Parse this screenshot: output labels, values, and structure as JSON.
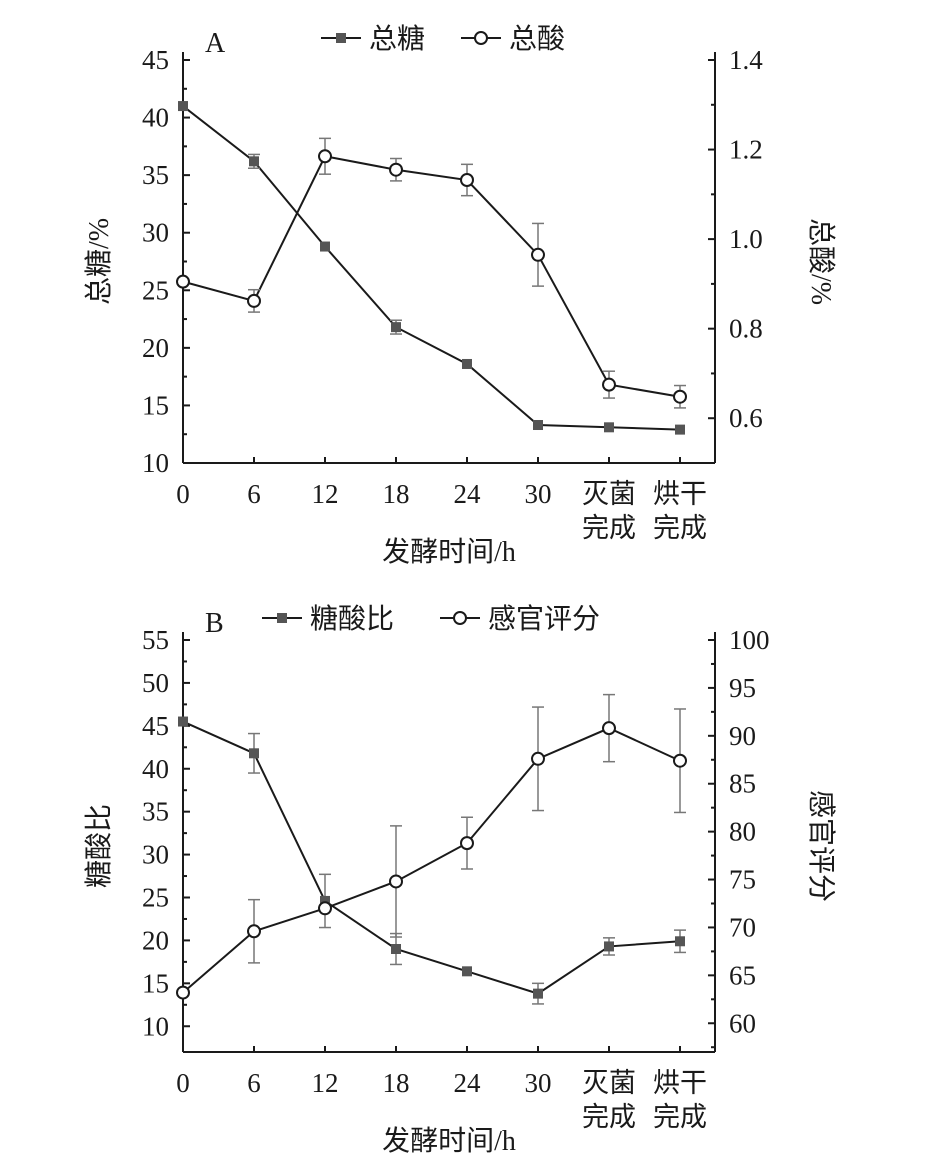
{
  "chart_data": [
    {
      "type": "line",
      "panel_label": "A",
      "categories": [
        "0",
        "6",
        "12",
        "18",
        "24",
        "30",
        "灭菌\n完成",
        "烘干\n完成"
      ],
      "xlabel": "发酵时间/h",
      "ylabel_left": "总糖/%",
      "ylabel_right": "总酸/%",
      "ylim_left": [
        10,
        45
      ],
      "yticks_left": [
        10,
        15,
        20,
        25,
        30,
        35,
        40,
        45
      ],
      "ylim_right": [
        0.5,
        1.4
      ],
      "yticks_right": [
        "0.6",
        "0.8",
        "1.0",
        "1.2",
        "1.4"
      ],
      "legend_position": "top-center",
      "series": [
        {
          "name": "总糖",
          "axis": "left",
          "marker": "square",
          "values": [
            41.0,
            36.2,
            28.8,
            21.8,
            18.6,
            13.3,
            13.1,
            12.9
          ],
          "errors": [
            0.0,
            0.6,
            0.0,
            0.6,
            0.0,
            0.0,
            0.0,
            0.0
          ]
        },
        {
          "name": "总酸",
          "axis": "right",
          "marker": "circle",
          "values": [
            0.905,
            0.862,
            1.185,
            1.155,
            1.132,
            0.965,
            0.675,
            0.648
          ],
          "errors": [
            0.0,
            0.025,
            0.04,
            0.025,
            0.035,
            0.07,
            0.03,
            0.025
          ]
        }
      ]
    },
    {
      "type": "line",
      "panel_label": "B",
      "categories": [
        "0",
        "6",
        "12",
        "18",
        "24",
        "30",
        "灭菌\n完成",
        "烘干\n完成"
      ],
      "xlabel": "发酵时间/h",
      "ylabel_left": "糖酸比",
      "ylabel_right": "感官评分",
      "ylim_left": [
        7,
        55
      ],
      "yticks_left": [
        10,
        15,
        20,
        25,
        30,
        35,
        40,
        45,
        50,
        55
      ],
      "ylim_right": [
        57,
        100
      ],
      "yticks_right": [
        60,
        65,
        70,
        75,
        80,
        85,
        90,
        95,
        100
      ],
      "legend_position": "top-center",
      "series": [
        {
          "name": "糖酸比",
          "axis": "left",
          "marker": "square",
          "values": [
            45.5,
            41.8,
            24.6,
            19.0,
            16.4,
            13.8,
            19.3,
            19.9
          ],
          "errors": [
            0.0,
            2.3,
            3.1,
            1.8,
            0.0,
            1.2,
            1.0,
            1.3
          ]
        },
        {
          "name": "感官评分",
          "axis": "right",
          "marker": "circle",
          "values": [
            63.2,
            69.6,
            72.0,
            74.8,
            78.8,
            87.6,
            90.8,
            87.4
          ],
          "errors": [
            0.0,
            3.3,
            0.0,
            5.8,
            2.7,
            5.4,
            3.5,
            5.4
          ]
        }
      ]
    }
  ]
}
